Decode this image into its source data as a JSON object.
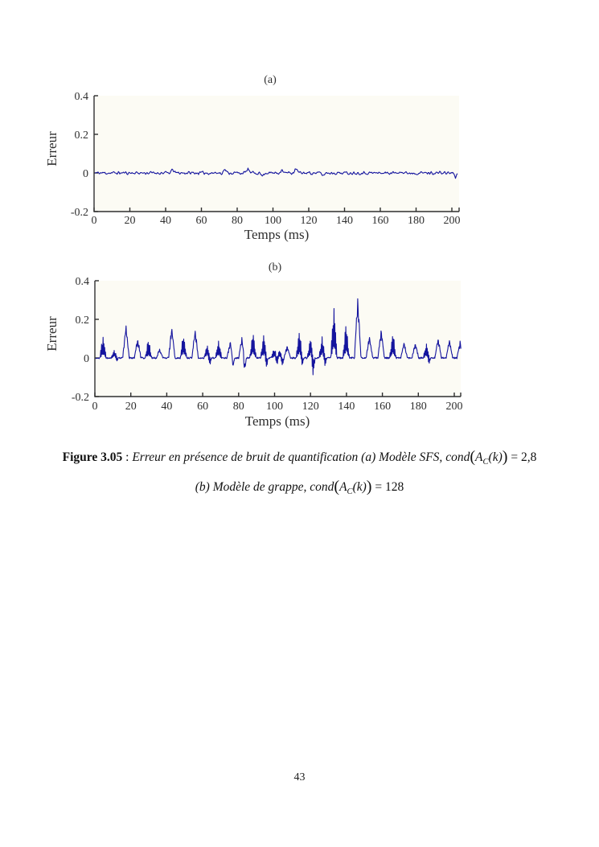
{
  "page": {
    "number": "43"
  },
  "caption": {
    "line1": {
      "label": "Figure 3.05",
      "sep": " : ",
      "text": "Erreur en présence de bruit de quantification (a) Modèle SFS, ",
      "math": {
        "func": "cond",
        "open": "(",
        "var": "A",
        "sub": "C",
        "arg": "(k)",
        "close": ")",
        "eq": " = ",
        "value": "2,8"
      }
    },
    "line2": {
      "text": "(b) Modèle de grappe, ",
      "math": {
        "func": "cond",
        "open": "(",
        "var": "A",
        "sub": "C",
        "arg": "(k)",
        "close": ")",
        "eq": " = ",
        "value": "128"
      }
    }
  },
  "chart_data": [
    {
      "type": "line",
      "title": "(a)",
      "xlabel": "Temps (ms)",
      "ylabel": "Erreur",
      "xlim": [
        0,
        204
      ],
      "ylim": [
        -0.2,
        0.4
      ],
      "xticks": [
        0,
        20,
        40,
        60,
        80,
        100,
        120,
        140,
        160,
        180,
        200
      ],
      "yticks": [
        -0.2,
        0,
        0.2,
        0.4
      ],
      "grid": false,
      "legend": false,
      "line_color": "#15159e",
      "axis_color": "#2f2f2f",
      "series_model": "noise",
      "baseline": 0,
      "noise_amplitude": 0.008,
      "bumps": [
        {
          "x": 44,
          "y": 0.018
        },
        {
          "x": 73,
          "y": 0.02
        },
        {
          "x": 86,
          "y": 0.022
        },
        {
          "x": 94,
          "y": -0.016
        },
        {
          "x": 105,
          "y": 0.02
        },
        {
          "x": 113,
          "y": 0.022
        },
        {
          "x": 128,
          "y": -0.014
        },
        {
          "x": 171,
          "y": 0.012
        },
        {
          "x": 202,
          "y": -0.022
        }
      ],
      "description": "Erreur de quantification, modèle SFS : bruit d'environ ±0.01 autour de 0 sur 0–204 ms"
    },
    {
      "type": "line",
      "title": "(b)",
      "xlabel": "Temps (ms)",
      "ylabel": "Erreur",
      "xlim": [
        0,
        204
      ],
      "ylim": [
        -0.2,
        0.4
      ],
      "xticks": [
        0,
        20,
        40,
        60,
        80,
        100,
        120,
        140,
        160,
        180,
        200
      ],
      "yticks": [
        -0.2,
        0,
        0.2,
        0.4
      ],
      "grid": false,
      "legend": false,
      "line_color": "#15159e",
      "axis_color": "#2f2f2f",
      "series_model": "peaks",
      "baseline": 0,
      "noise_amplitude": 0.004,
      "peaks": [
        {
          "x": 4.5,
          "h": 0.125,
          "thick": true
        },
        {
          "x": 10.8,
          "h": 0.045,
          "thick": true,
          "dip": -0.015
        },
        {
          "x": 17.3,
          "h": 0.185
        },
        {
          "x": 23.8,
          "h": 0.105
        },
        {
          "x": 29.8,
          "h": 0.1,
          "thick": true
        },
        {
          "x": 36.0,
          "h": 0.05
        },
        {
          "x": 42.8,
          "h": 0.17
        },
        {
          "x": 49.3,
          "h": 0.135,
          "thick": true
        },
        {
          "x": 55.8,
          "h": 0.155
        },
        {
          "x": 62.5,
          "h": 0.075,
          "dip": -0.035,
          "thick": true
        },
        {
          "x": 68.8,
          "h": 0.095,
          "thick": true
        },
        {
          "x": 75.3,
          "h": 0.09,
          "dip": -0.05
        },
        {
          "x": 81.8,
          "h": 0.11,
          "dip": -0.075
        },
        {
          "x": 88.0,
          "h": 0.145,
          "thick": true
        },
        {
          "x": 94.0,
          "h": 0.13,
          "dip": -0.05,
          "thick": true
        },
        {
          "x": 99.8,
          "h": 0.055,
          "dip": -0.045,
          "thick": true
        },
        {
          "x": 102.8,
          "h": 0.045,
          "dip": -0.04,
          "thick": true
        },
        {
          "x": 107.0,
          "h": 0.065
        },
        {
          "x": 113.8,
          "h": 0.155,
          "dip": -0.05,
          "thick": true
        },
        {
          "x": 120.0,
          "h": 0.115,
          "dip": -0.105,
          "thick": true
        },
        {
          "x": 126.5,
          "h": 0.12,
          "dip": -0.04,
          "thick": true
        },
        {
          "x": 133.0,
          "h": 0.3,
          "thick": true
        },
        {
          "x": 139.8,
          "h": 0.195,
          "thick": true
        },
        {
          "x": 146.3,
          "h": 0.35
        },
        {
          "x": 152.8,
          "h": 0.125
        },
        {
          "x": 159.3,
          "h": 0.16
        },
        {
          "x": 165.8,
          "h": 0.145,
          "thick": true
        },
        {
          "x": 172.0,
          "h": 0.09
        },
        {
          "x": 178.3,
          "h": 0.085
        },
        {
          "x": 184.5,
          "h": 0.08,
          "dip": -0.03,
          "thick": true
        },
        {
          "x": 191.0,
          "h": 0.115
        },
        {
          "x": 197.3,
          "h": 0.1
        },
        {
          "x": 203.3,
          "h": 0.09
        }
      ],
      "description": "Erreur, modèle de grappe : pics périodiques (~toutes les 6,5 ms) de 0.05 à 0.35, creux jusqu'à -0.10 vers 120 ms"
    }
  ]
}
